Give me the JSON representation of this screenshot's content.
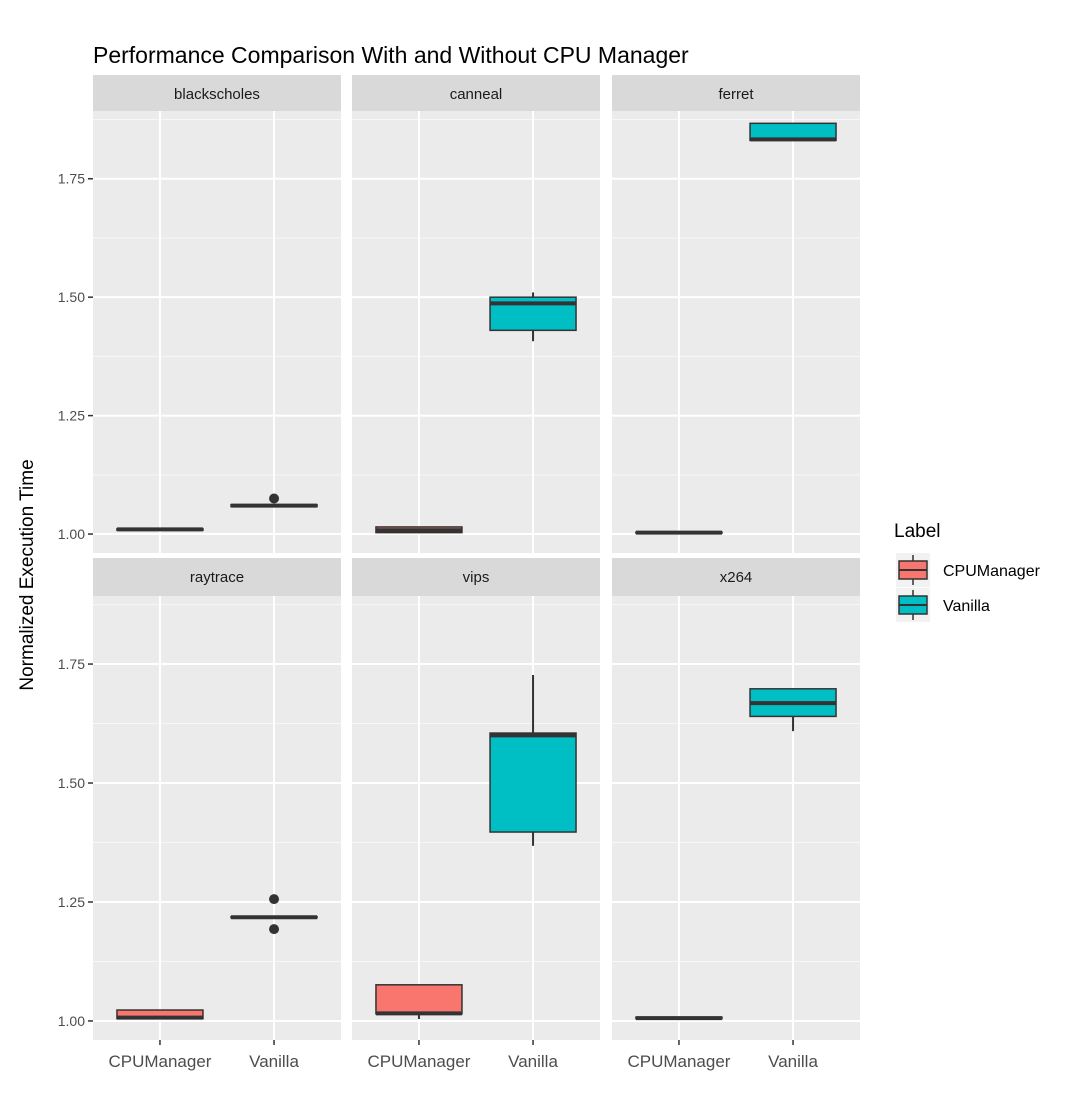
{
  "chart_data": {
    "type": "boxplot",
    "title": "Performance Comparison With and Without CPU Manager",
    "xlabel": "",
    "ylabel": "Normalized Execution Time",
    "ylim": [
      0.96,
      1.893
    ],
    "yticks": [
      "1.00",
      "1.25",
      "1.50",
      "1.75"
    ],
    "ytick_values": [
      1.0,
      1.25,
      1.5,
      1.75
    ],
    "categories": [
      "CPUManager",
      "Vanilla"
    ],
    "grid": true,
    "legend": {
      "title": "Label",
      "placement": "right",
      "entries": [
        {
          "name": "CPUManager",
          "color": "#F8766D"
        },
        {
          "name": "Vanilla",
          "color": "#00BFC4"
        }
      ]
    },
    "facets": [
      {
        "name": "blackscholes",
        "boxes": [
          {
            "category": "CPUManager",
            "min": 1.008,
            "q1": 1.008,
            "median": 1.01,
            "q3": 1.011,
            "max": 1.011,
            "outliers": []
          },
          {
            "category": "Vanilla",
            "min": 1.058,
            "q1": 1.058,
            "median": 1.06,
            "q3": 1.062,
            "max": 1.062,
            "outliers": [
              1.075
            ]
          }
        ]
      },
      {
        "name": "canneal",
        "boxes": [
          {
            "category": "CPUManager",
            "min": 1.003,
            "q1": 1.003,
            "median": 1.008,
            "q3": 1.015,
            "max": 1.015,
            "outliers": []
          },
          {
            "category": "Vanilla",
            "min": 1.407,
            "q1": 1.43,
            "median": 1.487,
            "q3": 1.5,
            "max": 1.51,
            "outliers": []
          }
        ]
      },
      {
        "name": "ferret",
        "boxes": [
          {
            "category": "CPUManager",
            "min": 1.002,
            "q1": 1.002,
            "median": 1.003,
            "q3": 1.004,
            "max": 1.004,
            "outliers": []
          },
          {
            "category": "Vanilla",
            "min": 1.831,
            "q1": 1.831,
            "median": 1.833,
            "q3": 1.867,
            "max": 1.867,
            "outliers": []
          }
        ]
      },
      {
        "name": "raytrace",
        "boxes": [
          {
            "category": "CPUManager",
            "min": 1.004,
            "q1": 1.005,
            "median": 1.007,
            "q3": 1.023,
            "max": 1.024,
            "outliers": []
          },
          {
            "category": "Vanilla",
            "min": 1.217,
            "q1": 1.217,
            "median": 1.218,
            "q3": 1.219,
            "max": 1.219,
            "outliers": [
              1.256,
              1.193
            ]
          }
        ]
      },
      {
        "name": "vips",
        "boxes": [
          {
            "category": "CPUManager",
            "min": 1.004,
            "q1": 1.015,
            "median": 1.016,
            "q3": 1.076,
            "max": 1.076,
            "outliers": []
          },
          {
            "category": "Vanilla",
            "min": 1.368,
            "q1": 1.397,
            "median": 1.6,
            "q3": 1.605,
            "max": 1.727,
            "outliers": []
          }
        ]
      },
      {
        "name": "x264",
        "boxes": [
          {
            "category": "CPUManager",
            "min": 1.005,
            "q1": 1.005,
            "median": 1.006,
            "q3": 1.008,
            "max": 1.008,
            "outliers": []
          },
          {
            "category": "Vanilla",
            "min": 1.609,
            "q1": 1.64,
            "median": 1.668,
            "q3": 1.698,
            "max": 1.698,
            "outliers": []
          }
        ]
      }
    ]
  }
}
